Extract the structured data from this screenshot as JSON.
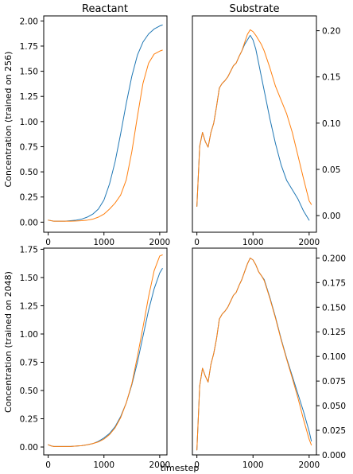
{
  "figure": {
    "col_titles": [
      "Reactant",
      "Substrate"
    ],
    "row_ylabels": [
      "Concentration (trained on 256)",
      "Concentration (trained on 2048)"
    ],
    "xlabel": "timestep"
  },
  "chart_data": [
    {
      "type": "line",
      "title": "Reactant",
      "ylabel": "Concentration (trained on 256)",
      "xlabel": "",
      "xlim": [
        -80,
        2130
      ],
      "ylim": [
        -0.1,
        2.05
      ],
      "xticks": [
        0,
        1000,
        2000
      ],
      "yticks": [
        0.0,
        0.25,
        0.5,
        0.75,
        1.0,
        1.25,
        1.5,
        1.75,
        2.0
      ],
      "ytick_labels": [
        "0.00",
        "0.25",
        "0.50",
        "0.75",
        "1.00",
        "1.25",
        "1.50",
        "1.75",
        "2.00"
      ],
      "yaxis_side": "left",
      "grid": false,
      "colors": [
        "#1f77b4",
        "#ff7f0e"
      ],
      "series": [
        {
          "x": [
            0,
            100,
            200,
            300,
            400,
            500,
            600,
            700,
            800,
            900,
            1000,
            1100,
            1200,
            1300,
            1400,
            1500,
            1600,
            1700,
            1800,
            1900,
            2000,
            2048
          ],
          "y": [
            0.02,
            0.01,
            0.01,
            0.01,
            0.015,
            0.02,
            0.03,
            0.05,
            0.08,
            0.13,
            0.22,
            0.38,
            0.6,
            0.88,
            1.18,
            1.45,
            1.66,
            1.79,
            1.87,
            1.92,
            1.95,
            1.96
          ]
        },
        {
          "x": [
            0,
            100,
            200,
            300,
            400,
            500,
            600,
            700,
            800,
            900,
            1000,
            1100,
            1200,
            1300,
            1400,
            1500,
            1600,
            1700,
            1800,
            1900,
            2000,
            2048
          ],
          "y": [
            0.02,
            0.01,
            0.01,
            0.01,
            0.01,
            0.012,
            0.015,
            0.02,
            0.03,
            0.05,
            0.08,
            0.13,
            0.19,
            0.27,
            0.42,
            0.7,
            1.05,
            1.38,
            1.58,
            1.67,
            1.7,
            1.71
          ]
        }
      ]
    },
    {
      "type": "line",
      "title": "Substrate",
      "ylabel": "",
      "xlabel": "",
      "xlim": [
        -80,
        2130
      ],
      "ylim": [
        -0.018,
        0.216
      ],
      "xticks": [
        0,
        1000,
        2000
      ],
      "yticks": [
        0.0,
        0.05,
        0.1,
        0.15,
        0.2
      ],
      "ytick_labels": [
        "0.00",
        "0.05",
        "0.10",
        "0.15",
        "0.20"
      ],
      "yaxis_side": "right",
      "grid": false,
      "colors": [
        "#1f77b4",
        "#ff7f0e"
      ],
      "series": [
        {
          "x": [
            0,
            50,
            100,
            150,
            200,
            250,
            300,
            350,
            400,
            450,
            500,
            550,
            600,
            650,
            700,
            750,
            800,
            850,
            900,
            950,
            1000,
            1050,
            1100,
            1150,
            1200,
            1300,
            1400,
            1500,
            1600,
            1700,
            1800,
            1900,
            2000
          ],
          "y": [
            0.01,
            0.075,
            0.09,
            0.08,
            0.074,
            0.09,
            0.1,
            0.118,
            0.138,
            0.143,
            0.146,
            0.15,
            0.156,
            0.162,
            0.165,
            0.172,
            0.178,
            0.185,
            0.19,
            0.195,
            0.19,
            0.18,
            0.165,
            0.15,
            0.135,
            0.105,
            0.078,
            0.055,
            0.038,
            0.028,
            0.018,
            0.005,
            -0.005
          ]
        },
        {
          "x": [
            0,
            50,
            100,
            150,
            200,
            250,
            300,
            350,
            400,
            450,
            500,
            550,
            600,
            650,
            700,
            750,
            800,
            850,
            900,
            950,
            1000,
            1050,
            1100,
            1150,
            1200,
            1300,
            1400,
            1500,
            1600,
            1700,
            1800,
            1900,
            2000,
            2040
          ],
          "y": [
            0.01,
            0.075,
            0.09,
            0.08,
            0.074,
            0.09,
            0.1,
            0.118,
            0.138,
            0.143,
            0.146,
            0.15,
            0.156,
            0.162,
            0.165,
            0.172,
            0.178,
            0.187,
            0.196,
            0.201,
            0.199,
            0.195,
            0.19,
            0.185,
            0.178,
            0.16,
            0.14,
            0.125,
            0.11,
            0.09,
            0.065,
            0.04,
            0.016,
            0.012
          ]
        }
      ]
    },
    {
      "type": "line",
      "title": "",
      "ylabel": "Concentration (trained on 2048)",
      "xlabel": "",
      "xlim": [
        -80,
        2130
      ],
      "ylim": [
        -0.07,
        1.76
      ],
      "xticks": [
        0,
        1000,
        2000
      ],
      "yticks": [
        0.0,
        0.25,
        0.5,
        0.75,
        1.0,
        1.25,
        1.5,
        1.75
      ],
      "ytick_labels": [
        "0.00",
        "0.25",
        "0.50",
        "0.75",
        "1.00",
        "1.25",
        "1.50",
        "1.75"
      ],
      "yaxis_side": "left",
      "grid": false,
      "colors": [
        "#1f77b4",
        "#ff7f0e"
      ],
      "series": [
        {
          "x": [
            0,
            50,
            100,
            200,
            300,
            400,
            500,
            600,
            700,
            800,
            900,
            1000,
            1100,
            1200,
            1300,
            1400,
            1500,
            1600,
            1700,
            1800,
            1900,
            2000,
            2048
          ],
          "y": [
            0.02,
            0.01,
            0.005,
            0.005,
            0.005,
            0.005,
            0.008,
            0.012,
            0.02,
            0.03,
            0.05,
            0.08,
            0.12,
            0.18,
            0.27,
            0.39,
            0.55,
            0.75,
            0.98,
            1.21,
            1.4,
            1.54,
            1.58
          ]
        },
        {
          "x": [
            0,
            50,
            100,
            200,
            300,
            400,
            500,
            600,
            700,
            800,
            900,
            1000,
            1100,
            1200,
            1300,
            1400,
            1500,
            1600,
            1700,
            1800,
            1900,
            2000,
            2048
          ],
          "y": [
            0.02,
            0.01,
            0.005,
            0.005,
            0.005,
            0.005,
            0.008,
            0.012,
            0.02,
            0.03,
            0.045,
            0.07,
            0.11,
            0.17,
            0.26,
            0.39,
            0.56,
            0.8,
            1.06,
            1.33,
            1.56,
            1.69,
            1.7
          ]
        }
      ]
    },
    {
      "type": "line",
      "title": "",
      "ylabel": "",
      "xlabel": "timestep",
      "xlim": [
        -80,
        2130
      ],
      "ylim": [
        0.0,
        0.21
      ],
      "xticks": [
        0,
        1000,
        2000
      ],
      "yticks": [
        0.0,
        0.025,
        0.05,
        0.075,
        0.1,
        0.125,
        0.15,
        0.175,
        0.2
      ],
      "ytick_labels": [
        "0.000",
        "0.025",
        "0.050",
        "0.075",
        "0.100",
        "0.125",
        "0.150",
        "0.175",
        "0.200"
      ],
      "yaxis_side": "right",
      "grid": false,
      "colors": [
        "#1f77b4",
        "#ff7f0e"
      ],
      "series": [
        {
          "x": [
            0,
            50,
            100,
            150,
            200,
            250,
            300,
            350,
            400,
            450,
            500,
            550,
            600,
            650,
            700,
            750,
            800,
            850,
            900,
            950,
            1000,
            1050,
            1100,
            1150,
            1200,
            1300,
            1400,
            1500,
            1600,
            1700,
            1800,
            1900,
            2000,
            2040
          ],
          "y": [
            0.005,
            0.07,
            0.088,
            0.08,
            0.074,
            0.092,
            0.103,
            0.118,
            0.138,
            0.143,
            0.146,
            0.15,
            0.156,
            0.162,
            0.165,
            0.172,
            0.178,
            0.186,
            0.194,
            0.2,
            0.198,
            0.193,
            0.186,
            0.182,
            0.178,
            0.16,
            0.14,
            0.118,
            0.098,
            0.08,
            0.062,
            0.044,
            0.024,
            0.014
          ]
        },
        {
          "x": [
            0,
            50,
            100,
            150,
            200,
            250,
            300,
            350,
            400,
            450,
            500,
            550,
            600,
            650,
            700,
            750,
            800,
            850,
            900,
            950,
            1000,
            1050,
            1100,
            1150,
            1200,
            1300,
            1400,
            1500,
            1600,
            1700,
            1800,
            1900,
            2000,
            2040
          ],
          "y": [
            0.005,
            0.07,
            0.088,
            0.08,
            0.074,
            0.092,
            0.103,
            0.118,
            0.138,
            0.143,
            0.146,
            0.15,
            0.156,
            0.162,
            0.165,
            0.172,
            0.178,
            0.186,
            0.194,
            0.2,
            0.198,
            0.193,
            0.186,
            0.182,
            0.177,
            0.159,
            0.139,
            0.117,
            0.097,
            0.078,
            0.058,
            0.036,
            0.016,
            0.01
          ]
        }
      ]
    }
  ]
}
